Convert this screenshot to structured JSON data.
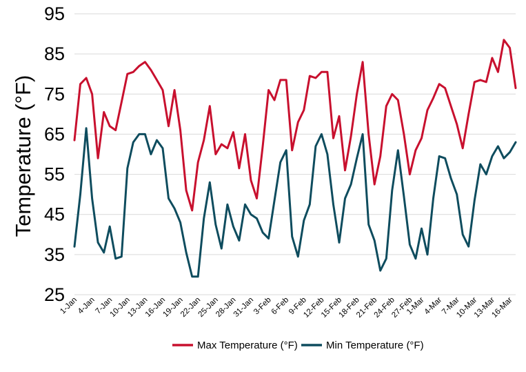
{
  "chart_data": {
    "type": "line",
    "title": "",
    "xlabel": "",
    "ylabel": "Temperature (°F)",
    "ylim": [
      25,
      95
    ],
    "yticks": [
      25,
      35,
      45,
      55,
      65,
      75,
      85,
      95
    ],
    "grid": true,
    "legend_position": "bottom",
    "x": [
      "1-Jan",
      "2-Jan",
      "3-Jan",
      "4-Jan",
      "5-Jan",
      "6-Jan",
      "7-Jan",
      "8-Jan",
      "9-Jan",
      "10-Jan",
      "11-Jan",
      "12-Jan",
      "13-Jan",
      "14-Jan",
      "15-Jan",
      "16-Jan",
      "17-Jan",
      "18-Jan",
      "19-Jan",
      "20-Jan",
      "21-Jan",
      "22-Jan",
      "23-Jan",
      "24-Jan",
      "25-Jan",
      "26-Jan",
      "27-Jan",
      "28-Jan",
      "29-Jan",
      "30-Jan",
      "31-Jan",
      "1-Feb",
      "2-Feb",
      "3-Feb",
      "4-Feb",
      "5-Feb",
      "6-Feb",
      "7-Feb",
      "8-Feb",
      "9-Feb",
      "10-Feb",
      "11-Feb",
      "12-Feb",
      "13-Feb",
      "14-Feb",
      "15-Feb",
      "16-Feb",
      "17-Feb",
      "18-Feb",
      "19-Feb",
      "20-Feb",
      "21-Feb",
      "22-Feb",
      "23-Feb",
      "24-Feb",
      "25-Feb",
      "26-Feb",
      "27-Feb",
      "28-Feb",
      "1-Mar",
      "2-Mar",
      "3-Mar",
      "4-Mar",
      "5-Mar",
      "6-Mar",
      "7-Mar",
      "8-Mar",
      "9-Mar",
      "10-Mar",
      "11-Mar",
      "12-Mar",
      "13-Mar",
      "14-Mar",
      "15-Mar",
      "16-Mar",
      "17-Mar"
    ],
    "xtick_labels": [
      "1-Jan",
      "4-Jan",
      "7-Jan",
      "10-Jan",
      "13-Jan",
      "16-Jan",
      "19-Jan",
      "22-Jan",
      "25-Jan",
      "28-Jan",
      "31-Jan",
      "3-Feb",
      "6-Feb",
      "9-Feb",
      "12-Feb",
      "15-Feb",
      "18-Feb",
      "21-Feb",
      "24-Feb",
      "27-Feb",
      "1-Mar",
      "4-Mar",
      "7-Mar",
      "10-Mar",
      "13-Mar",
      "16-Mar"
    ],
    "series": [
      {
        "name": "Max Temperature (°F)",
        "color": "#c8102e",
        "values": [
          63.5,
          77.5,
          79,
          75,
          59,
          70.5,
          67,
          66,
          73,
          80,
          80.5,
          82,
          83,
          81,
          78.5,
          76,
          67,
          76,
          66,
          51,
          46,
          58,
          63.5,
          72,
          60,
          62.5,
          61.5,
          65.5,
          56.5,
          65,
          53.5,
          49,
          62,
          76,
          73.5,
          78.5,
          78.5,
          61,
          68,
          71,
          79.5,
          79,
          80.5,
          80.5,
          64,
          69.5,
          56,
          64.5,
          75,
          83,
          65,
          52.5,
          59.5,
          72,
          75,
          73.5,
          65,
          55,
          61,
          64,
          71,
          74,
          77.5,
          76.5,
          72,
          67.5,
          61.5,
          70,
          78,
          78.5,
          78,
          84,
          80.5,
          88.5,
          86.5,
          76.5
        ]
      },
      {
        "name": "Min Temperature (°F)",
        "color": "#0e4c5e",
        "values": [
          37,
          50,
          66.5,
          49,
          38,
          35.5,
          42,
          34,
          34.5,
          56.5,
          63,
          65,
          65,
          60,
          63.5,
          61.5,
          49,
          46.5,
          43,
          35.5,
          29.5,
          29.5,
          44,
          53,
          42.5,
          36.5,
          47.5,
          42,
          38.5,
          47.5,
          45,
          44,
          40.5,
          39,
          48.5,
          58,
          61,
          39.5,
          34.5,
          43.5,
          47.5,
          62,
          65,
          60,
          47.5,
          38,
          49,
          52.5,
          59,
          65,
          42.5,
          38.5,
          31,
          34,
          51,
          61,
          49.5,
          37.5,
          34,
          41.5,
          35,
          49,
          59.5,
          59,
          54,
          50,
          40,
          37,
          48.5,
          57.5,
          55,
          59.5,
          62,
          59,
          60.5,
          63
        ]
      }
    ]
  }
}
